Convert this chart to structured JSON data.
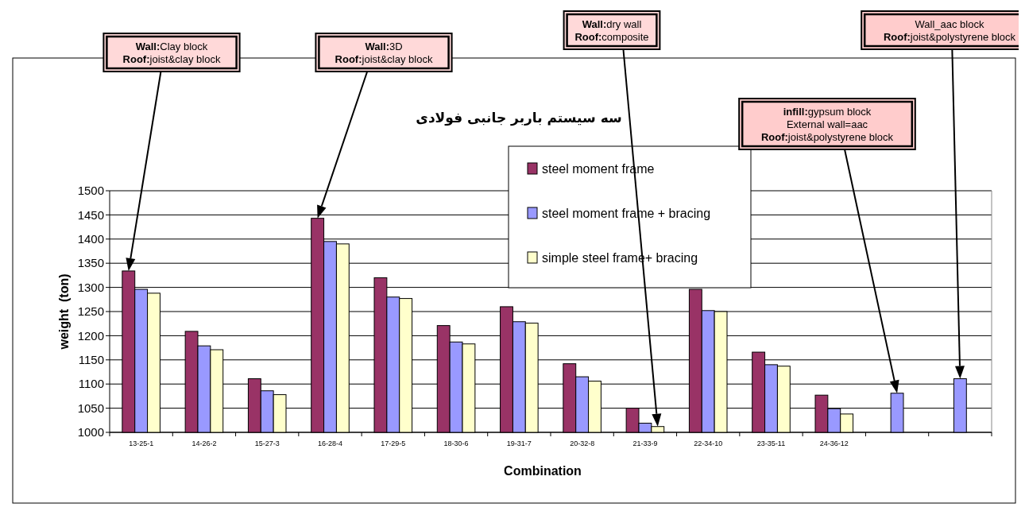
{
  "chart_data": {
    "type": "bar",
    "title": "سه سیستم باربر جانبی فولادی",
    "xlabel": "Combination",
    "ylabel": "weight  (ton)",
    "categories": [
      "13-25-1",
      "14-26-2",
      "15-27-3",
      "16-28-4",
      "17-29-5",
      "18-30-6",
      "19-31-7",
      "20-32-8",
      "21-33-9",
      "22-34-10",
      "23-35-11",
      "24-36-12",
      null,
      null
    ],
    "series": [
      {
        "name": "steel moment frame",
        "color": "#993366",
        "values": [
          1334,
          1209,
          1111,
          1443,
          1320,
          1221,
          1260,
          1142,
          1050,
          1296,
          1166,
          1077,
          null,
          null
        ]
      },
      {
        "name": "steel moment frame + bracing",
        "color": "#9999ff",
        "values": [
          1296,
          1179,
          1086,
          1395,
          1280,
          1187,
          1229,
          1115,
          1019,
          1252,
          1140,
          1049,
          1081,
          1111
        ]
      },
      {
        "name": "simple steel frame+ bracing",
        "color": "#ffffcc",
        "values": [
          1288,
          1171,
          1078,
          1390,
          1277,
          1183,
          1226,
          1106,
          1012,
          1250,
          1137,
          1038,
          null,
          null
        ]
      }
    ],
    "ylim": [
      1000,
      1500
    ],
    "yticks": [
      1000,
      1050,
      1100,
      1150,
      1200,
      1250,
      1300,
      1350,
      1400,
      1450,
      1500
    ],
    "grid": "y",
    "legend": "top",
    "annotations": [
      "Wall:Clay block\nRoof:joist&clay block",
      "Wall:3D\nRoof:joist&clay block",
      "Wall:dry wall\nRoof:composite",
      "infill:gypsum block\nExternal wall=aac\nRoof:joist&polystyrene block",
      "Wall_aac block\nRoof:joist&polystyrene block"
    ]
  }
}
